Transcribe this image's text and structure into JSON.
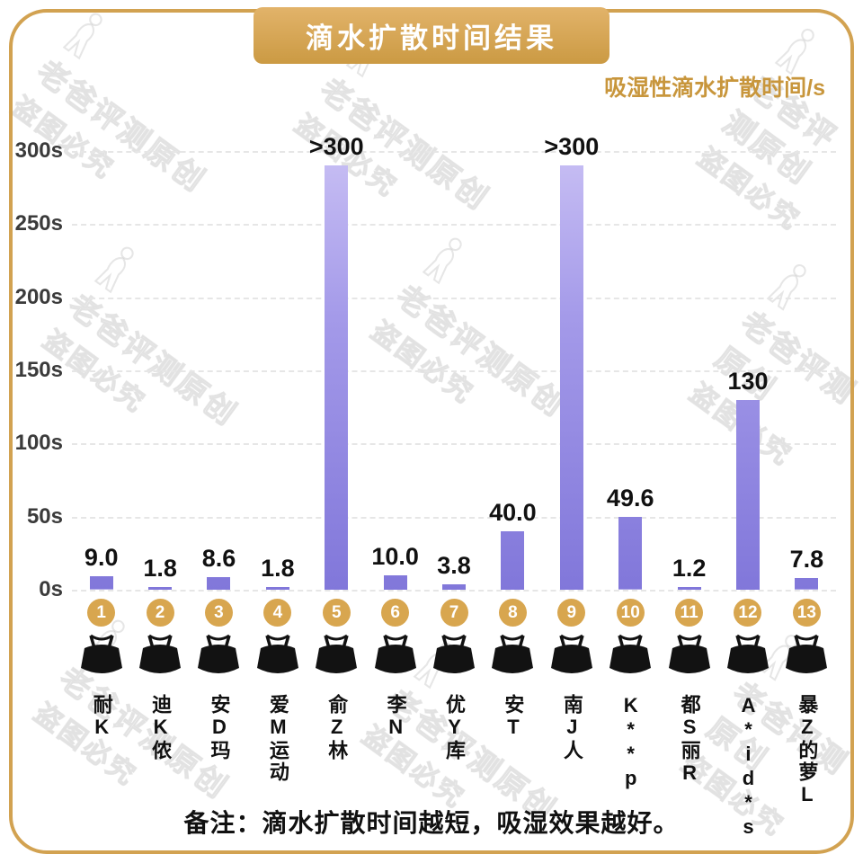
{
  "header": {
    "title": "滴水扩散时间结果",
    "axis_label": "吸湿性滴水扩散时间/s"
  },
  "watermark": {
    "line1": "老爸评测原创",
    "line2": "盗图必究"
  },
  "footer": {
    "note": "备注：滴水扩散时间越短，吸湿效果越好。"
  },
  "colors": {
    "accent_gold": "#D2A251",
    "banner_gold_light": "#E2B36A",
    "banner_gold_dark": "#CB9A43",
    "bar_purple_light": "#CBC2F5",
    "bar_purple_dark": "#8177DA",
    "rank_circle": "#D8A64F",
    "axis_label_color": "#C8963C"
  },
  "chart_data": {
    "type": "bar",
    "title": "滴水扩散时间结果",
    "ylabel": "吸湿性滴水扩散时间/s",
    "ylim": [
      0,
      300
    ],
    "grid": "dashed horizontal",
    "yticks": [
      "300s",
      "250s",
      "200s",
      "150s",
      "100s",
      "50s",
      "0s"
    ],
    "ranks": [
      1,
      2,
      3,
      4,
      5,
      6,
      7,
      8,
      9,
      10,
      11,
      12,
      13
    ],
    "categories": [
      "耐K",
      "迪K侬",
      "安D玛",
      "爱M运动",
      "俞Z林",
      "李N",
      "优Y库",
      "安T",
      "南J人",
      "K**p",
      "都S丽R",
      "A*id*s",
      "暴Z的萝L"
    ],
    "values": [
      9.0,
      1.8,
      8.6,
      1.8,
      300,
      10.0,
      3.8,
      40.0,
      300,
      49.6,
      1.2,
      130,
      7.8
    ],
    "value_labels": [
      "9.0",
      "1.8",
      "8.6",
      "1.8",
      ">300",
      "10.0",
      "3.8",
      "40.0",
      ">300",
      "49.6",
      "1.2",
      "130",
      "7.8"
    ],
    "note": "备注：滴水扩散时间越短，吸湿效果越好。"
  }
}
